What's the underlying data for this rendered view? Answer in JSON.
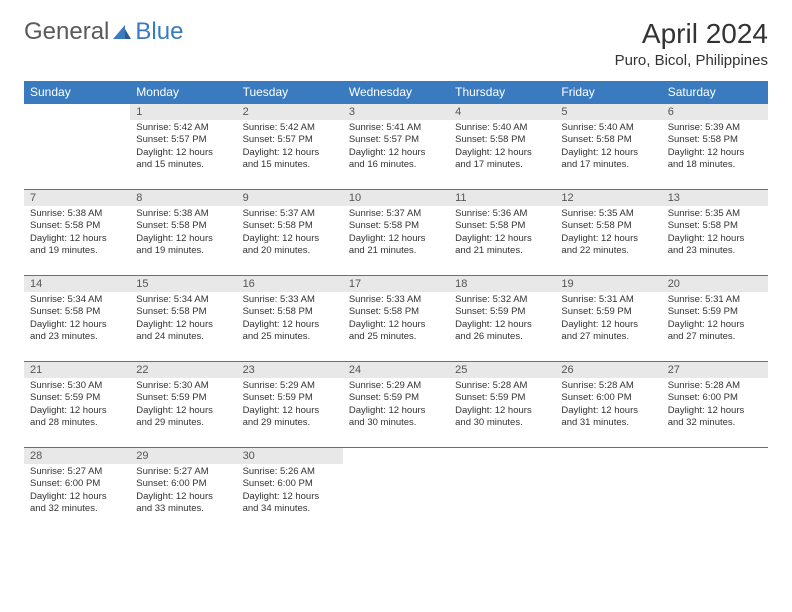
{
  "logo": {
    "text1": "General",
    "text2": "Blue"
  },
  "title": "April 2024",
  "location": "Puro, Bicol, Philippines",
  "colors": {
    "header_bg": "#3a7bbf",
    "header_text": "#ffffff",
    "daynum_bg": "#e8e8e8",
    "border": "#3a7bbf",
    "body_text": "#333333"
  },
  "fonts": {
    "title_size": 28,
    "location_size": 15,
    "dayhead_size": 12,
    "daynum_size": 11,
    "body_size": 9.5
  },
  "dayNames": [
    "Sunday",
    "Monday",
    "Tuesday",
    "Wednesday",
    "Thursday",
    "Friday",
    "Saturday"
  ],
  "weeks": [
    [
      null,
      {
        "n": "1",
        "sr": "5:42 AM",
        "ss": "5:57 PM",
        "dl": "12 hours and 15 minutes."
      },
      {
        "n": "2",
        "sr": "5:42 AM",
        "ss": "5:57 PM",
        "dl": "12 hours and 15 minutes."
      },
      {
        "n": "3",
        "sr": "5:41 AM",
        "ss": "5:57 PM",
        "dl": "12 hours and 16 minutes."
      },
      {
        "n": "4",
        "sr": "5:40 AM",
        "ss": "5:58 PM",
        "dl": "12 hours and 17 minutes."
      },
      {
        "n": "5",
        "sr": "5:40 AM",
        "ss": "5:58 PM",
        "dl": "12 hours and 17 minutes."
      },
      {
        "n": "6",
        "sr": "5:39 AM",
        "ss": "5:58 PM",
        "dl": "12 hours and 18 minutes."
      }
    ],
    [
      {
        "n": "7",
        "sr": "5:38 AM",
        "ss": "5:58 PM",
        "dl": "12 hours and 19 minutes."
      },
      {
        "n": "8",
        "sr": "5:38 AM",
        "ss": "5:58 PM",
        "dl": "12 hours and 19 minutes."
      },
      {
        "n": "9",
        "sr": "5:37 AM",
        "ss": "5:58 PM",
        "dl": "12 hours and 20 minutes."
      },
      {
        "n": "10",
        "sr": "5:37 AM",
        "ss": "5:58 PM",
        "dl": "12 hours and 21 minutes."
      },
      {
        "n": "11",
        "sr": "5:36 AM",
        "ss": "5:58 PM",
        "dl": "12 hours and 21 minutes."
      },
      {
        "n": "12",
        "sr": "5:35 AM",
        "ss": "5:58 PM",
        "dl": "12 hours and 22 minutes."
      },
      {
        "n": "13",
        "sr": "5:35 AM",
        "ss": "5:58 PM",
        "dl": "12 hours and 23 minutes."
      }
    ],
    [
      {
        "n": "14",
        "sr": "5:34 AM",
        "ss": "5:58 PM",
        "dl": "12 hours and 23 minutes."
      },
      {
        "n": "15",
        "sr": "5:34 AM",
        "ss": "5:58 PM",
        "dl": "12 hours and 24 minutes."
      },
      {
        "n": "16",
        "sr": "5:33 AM",
        "ss": "5:58 PM",
        "dl": "12 hours and 25 minutes."
      },
      {
        "n": "17",
        "sr": "5:33 AM",
        "ss": "5:58 PM",
        "dl": "12 hours and 25 minutes."
      },
      {
        "n": "18",
        "sr": "5:32 AM",
        "ss": "5:59 PM",
        "dl": "12 hours and 26 minutes."
      },
      {
        "n": "19",
        "sr": "5:31 AM",
        "ss": "5:59 PM",
        "dl": "12 hours and 27 minutes."
      },
      {
        "n": "20",
        "sr": "5:31 AM",
        "ss": "5:59 PM",
        "dl": "12 hours and 27 minutes."
      }
    ],
    [
      {
        "n": "21",
        "sr": "5:30 AM",
        "ss": "5:59 PM",
        "dl": "12 hours and 28 minutes."
      },
      {
        "n": "22",
        "sr": "5:30 AM",
        "ss": "5:59 PM",
        "dl": "12 hours and 29 minutes."
      },
      {
        "n": "23",
        "sr": "5:29 AM",
        "ss": "5:59 PM",
        "dl": "12 hours and 29 minutes."
      },
      {
        "n": "24",
        "sr": "5:29 AM",
        "ss": "5:59 PM",
        "dl": "12 hours and 30 minutes."
      },
      {
        "n": "25",
        "sr": "5:28 AM",
        "ss": "5:59 PM",
        "dl": "12 hours and 30 minutes."
      },
      {
        "n": "26",
        "sr": "5:28 AM",
        "ss": "6:00 PM",
        "dl": "12 hours and 31 minutes."
      },
      {
        "n": "27",
        "sr": "5:28 AM",
        "ss": "6:00 PM",
        "dl": "12 hours and 32 minutes."
      }
    ],
    [
      {
        "n": "28",
        "sr": "5:27 AM",
        "ss": "6:00 PM",
        "dl": "12 hours and 32 minutes."
      },
      {
        "n": "29",
        "sr": "5:27 AM",
        "ss": "6:00 PM",
        "dl": "12 hours and 33 minutes."
      },
      {
        "n": "30",
        "sr": "5:26 AM",
        "ss": "6:00 PM",
        "dl": "12 hours and 34 minutes."
      },
      null,
      null,
      null,
      null
    ]
  ],
  "labels": {
    "sunrise": "Sunrise:",
    "sunset": "Sunset:",
    "daylight": "Daylight:"
  }
}
